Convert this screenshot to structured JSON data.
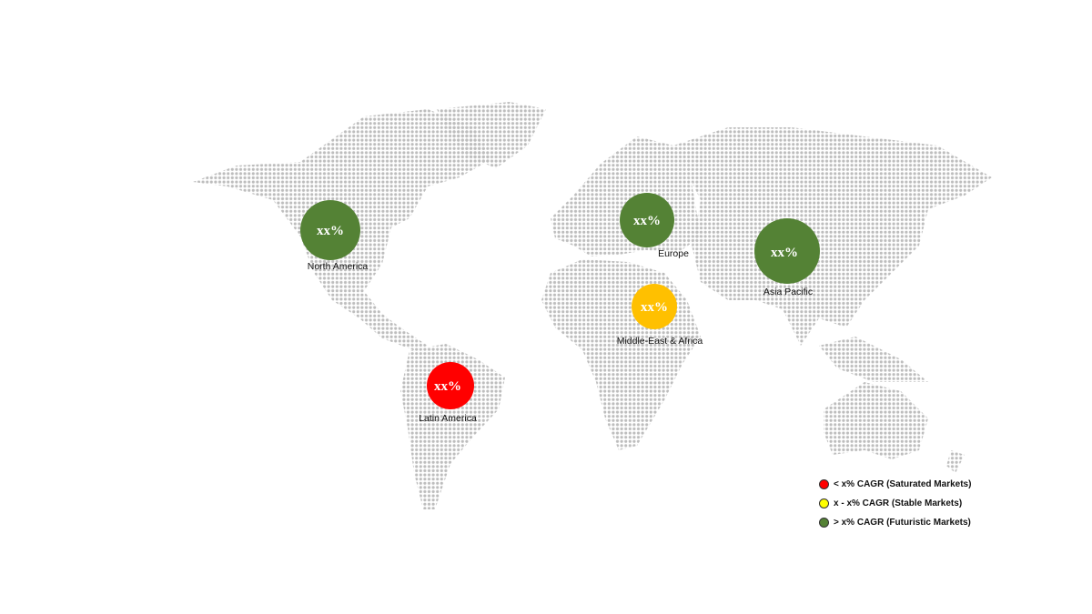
{
  "colors": {
    "futuristic": "#548235",
    "stable": "#FFC000",
    "saturated": "#FF0000",
    "map_dots": "#bdbdbd",
    "legend_yellow": "#FFFF00"
  },
  "regions": [
    {
      "name": "North America",
      "value": "xx%",
      "category": "futuristic"
    },
    {
      "name": "Europe",
      "value": "xx%",
      "category": "futuristic"
    },
    {
      "name": "Asia Pacific",
      "value": "xx%",
      "category": "futuristic"
    },
    {
      "name": "Middle-East & Africa",
      "value": "xx%",
      "category": "stable"
    },
    {
      "name": "Latin America",
      "value": "xx%",
      "category": "saturated"
    }
  ],
  "legend": [
    {
      "label": "< x% CAGR (Saturated Markets)",
      "color": "#FF0000"
    },
    {
      "label": "x - x% CAGR (Stable Markets)",
      "color": "#FFFF00"
    },
    {
      "label": "> x% CAGR (Futuristic Markets)",
      "color": "#548235"
    }
  ]
}
